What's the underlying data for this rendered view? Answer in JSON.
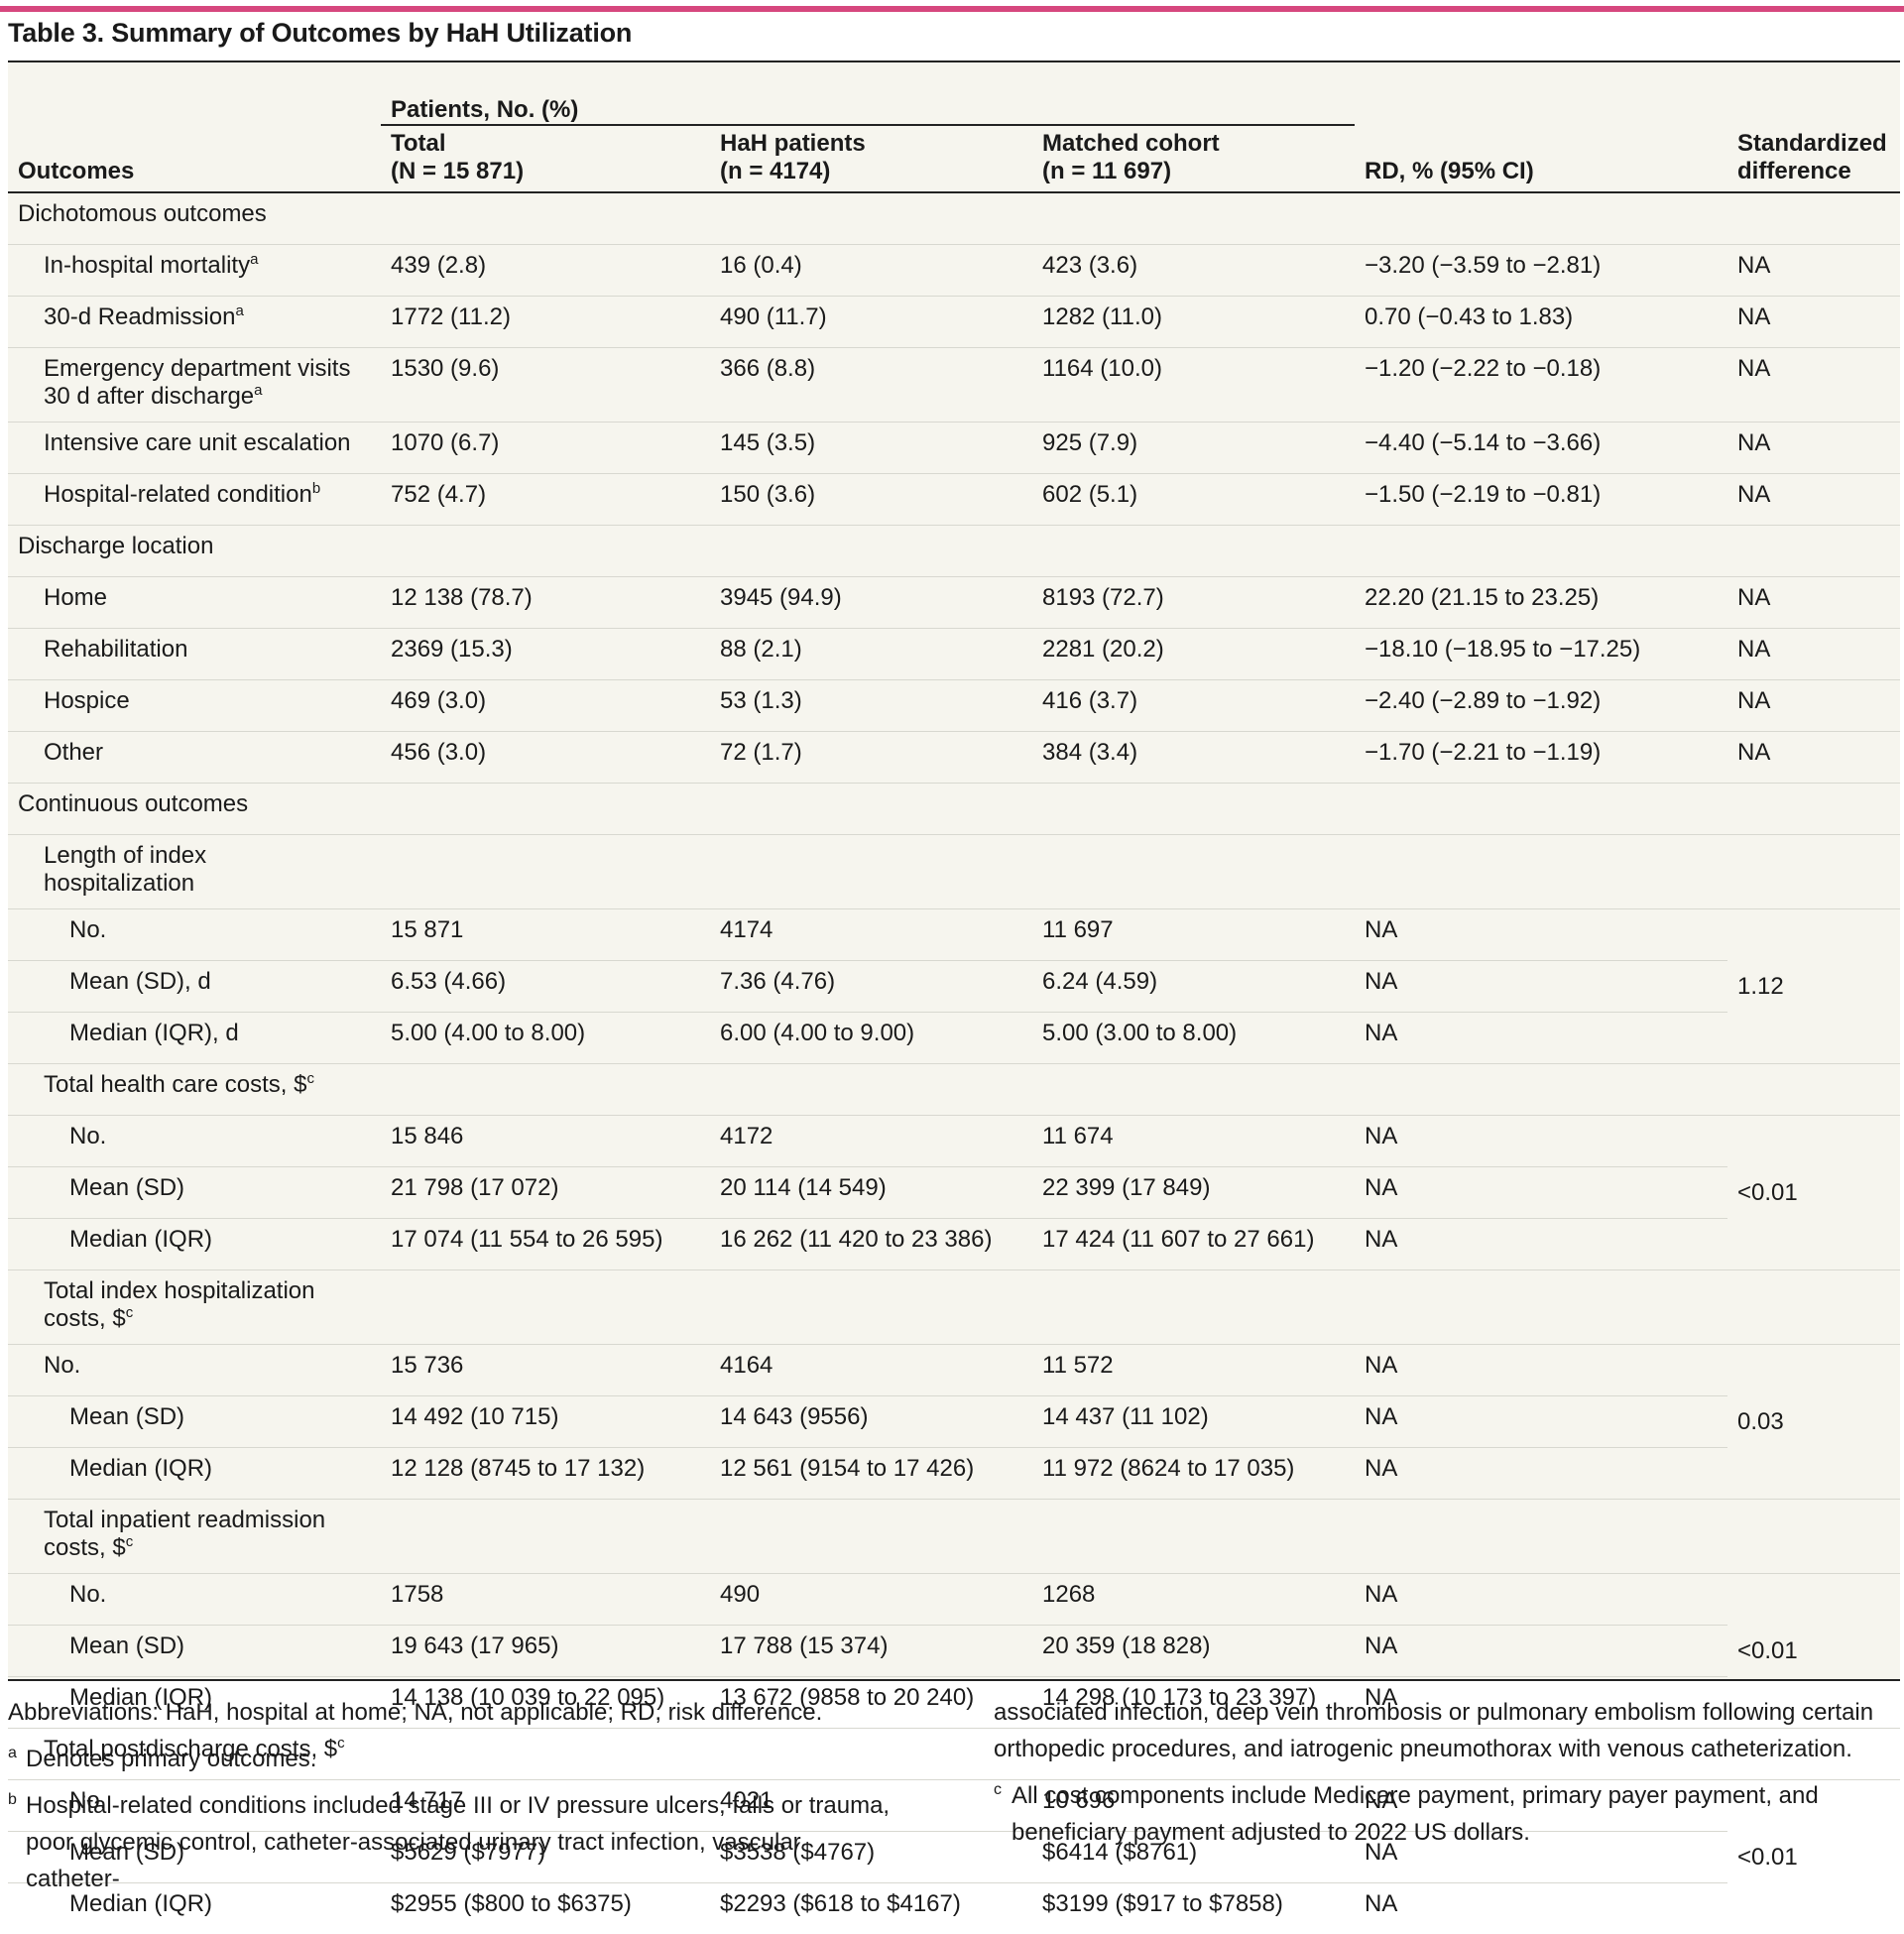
{
  "title": "Table 3. Summary of Outcomes by HaH Utilization",
  "header": {
    "outcomes": "Outcomes",
    "group": "Patients, No. (%)",
    "total_l1": "Total",
    "total_l2": "(N = 15 871)",
    "hah_l1": "HaH patients",
    "hah_l2": "(n = 4174)",
    "matched_l1": "Matched cohort",
    "matched_l2": "(n = 11 697)",
    "rd": "RD, % (95% CI)",
    "sd_l1": "Standardized",
    "sd_l2": "difference"
  },
  "sections": {
    "dichotomous": "Dichotomous outcomes",
    "discharge": "Discharge location",
    "continuous": "Continuous outcomes"
  },
  "rows": {
    "mortality": {
      "label": "In-hospital mortality",
      "sup": "a",
      "total": "439 (2.8)",
      "hah": "16 (0.4)",
      "matched": "423 (3.6)",
      "rd": "−3.20 (−3.59 to −2.81)",
      "sd": "NA"
    },
    "readmission": {
      "label": "30-d Readmission",
      "sup": "a",
      "total": "1772 (11.2)",
      "hah": "490 (11.7)",
      "matched": "1282 (11.0)",
      "rd": "0.70 (−0.43 to 1.83)",
      "sd": "NA"
    },
    "ed": {
      "label_l1": "Emergency department visits",
      "label_l2": "30 d after discharge",
      "sup": "a",
      "total": "1530 (9.6)",
      "hah": "366 (8.8)",
      "matched": "1164 (10.0)",
      "rd": "−1.20 (−2.22 to −0.18)",
      "sd": "NA"
    },
    "icu": {
      "label": "Intensive care unit escalation",
      "total": "1070 (6.7)",
      "hah": "145 (3.5)",
      "matched": "925 (7.9)",
      "rd": "−4.40 (−5.14 to −3.66)",
      "sd": "NA"
    },
    "hrc": {
      "label": "Hospital-related condition",
      "sup": "b",
      "total": "752 (4.7)",
      "hah": "150 (3.6)",
      "matched": "602 (5.1)",
      "rd": "−1.50 (−2.19 to −0.81)",
      "sd": "NA"
    },
    "home": {
      "label": "Home",
      "total": "12 138 (78.7)",
      "hah": "3945 (94.9)",
      "matched": "8193 (72.7)",
      "rd": "22.20 (21.15 to 23.25)",
      "sd": "NA"
    },
    "rehab": {
      "label": "Rehabilitation",
      "total": "2369 (15.3)",
      "hah": "88 (2.1)",
      "matched": "2281 (20.2)",
      "rd": "−18.10 (−18.95 to −17.25)",
      "sd": "NA"
    },
    "hospice": {
      "label": "Hospice",
      "total": "469 (3.0)",
      "hah": "53 (1.3)",
      "matched": "416 (3.7)",
      "rd": "−2.40 (−2.89 to −1.92)",
      "sd": "NA"
    },
    "other": {
      "label": "Other",
      "total": "456 (3.0)",
      "hah": "72 (1.7)",
      "matched": "384 (3.4)",
      "rd": "−1.70 (−2.21 to −1.19)",
      "sd": "NA"
    }
  },
  "continuous": {
    "los": {
      "label_l1": "Length of index",
      "label_l2": "hospitalization",
      "sd": "1.12",
      "rows": [
        {
          "label": "No.",
          "total": "15 871",
          "hah": "4174",
          "matched": "11 697",
          "rd": "NA"
        },
        {
          "label": "Mean (SD), d",
          "total": "6.53 (4.66)",
          "hah": "7.36 (4.76)",
          "matched": "6.24 (4.59)",
          "rd": "NA"
        },
        {
          "label": "Median (IQR), d",
          "total": "5.00 (4.00 to 8.00)",
          "hah": "6.00 (4.00 to 9.00)",
          "matched": "5.00 (3.00 to 8.00)",
          "rd": "NA"
        }
      ]
    },
    "thc": {
      "label": "Total health care costs, $",
      "sup": "c",
      "sd": "<0.01",
      "rows": [
        {
          "label": "No.",
          "total": "15 846",
          "hah": "4172",
          "matched": "11 674",
          "rd": "NA"
        },
        {
          "label": "Mean (SD)",
          "total": "21 798 (17 072)",
          "hah": "20 114 (14 549)",
          "matched": "22 399 (17 849)",
          "rd": "NA"
        },
        {
          "label": "Median (IQR)",
          "total": "17 074 (11 554 to 26 595)",
          "hah": "16 262 (11 420 to 23 386)",
          "matched": "17 424 (11 607 to 27 661)",
          "rd": "NA"
        }
      ]
    },
    "tih": {
      "label_l1": "Total index hospitalization",
      "label_l2": "costs, $",
      "sup": "c",
      "sd": "0.03",
      "rows": [
        {
          "label": "No.",
          "total": "15 736",
          "hah": "4164",
          "matched": "11 572",
          "rd": "NA"
        },
        {
          "label": "Mean (SD)",
          "total": "14 492 (10 715)",
          "hah": "14 643 (9556)",
          "matched": "14 437 (11 102)",
          "rd": "NA"
        },
        {
          "label": "Median (IQR)",
          "total": "12 128 (8745 to 17 132)",
          "hah": "12 561 (9154 to 17 426)",
          "matched": "11 972 (8624 to 17 035)",
          "rd": "NA"
        }
      ]
    },
    "tir": {
      "label_l1": "Total inpatient readmission",
      "label_l2": "costs, $",
      "sup": "c",
      "sd": "<0.01",
      "rows": [
        {
          "label": "No.",
          "total": "1758",
          "hah": "490",
          "matched": "1268",
          "rd": "NA"
        },
        {
          "label": "Mean (SD)",
          "total": "19 643 (17 965)",
          "hah": "17 788 (15 374)",
          "matched": "20 359 (18 828)",
          "rd": "NA"
        },
        {
          "label": "Median (IQR)",
          "total": "14 138 (10 039 to 22 095)",
          "hah": "13 672 (9858 to 20 240)",
          "matched": "14 298 (10 173 to 23 397)",
          "rd": "NA"
        }
      ]
    },
    "tpd": {
      "label": "Total postdischarge costs, $",
      "sup": "c",
      "sd": "<0.01",
      "rows": [
        {
          "label": "No.",
          "total": "14 717",
          "hah": "4021",
          "matched": "10 696",
          "rd": "NA"
        },
        {
          "label": "Mean (SD)",
          "total": "$5629 ($7977)",
          "hah": "$3538 ($4767)",
          "matched": "$6414 ($8761)",
          "rd": "NA"
        },
        {
          "label": "Median (IQR)",
          "total": "$2955 ($800 to $6375)",
          "hah": "$2293 ($618 to $4167)",
          "matched": "$3199 ($917 to $7858)",
          "rd": "NA"
        }
      ]
    }
  },
  "footnotes": {
    "abbrev": "Abbreviations: HaH, hospital at home; NA, not applicable; RD, risk difference.",
    "a_mark": "a",
    "a_text": "Denotes primary outcomes.",
    "b_mark": "b",
    "b_text_l1": "Hospital-related conditions included stage III or IV pressure ulcers, falls or trauma,",
    "b_text_l2": "poor glycemic control, catheter-associated urinary tract infection, vascular catheter-",
    "b_text_l3": "associated infection, deep vein thrombosis or pulmonary embolism following certain",
    "b_text_l4": "orthopedic procedures, and iatrogenic pneumothorax with venous catheterization.",
    "c_mark": "c",
    "c_text_l1": "All cost components include Medicare payment, primary payer payment, and",
    "c_text_l2": "beneficiary payment adjusted to 2022 US dollars."
  },
  "colors": {
    "accent_bar": "#d6477e",
    "table_bg": "#f6f5ee"
  }
}
